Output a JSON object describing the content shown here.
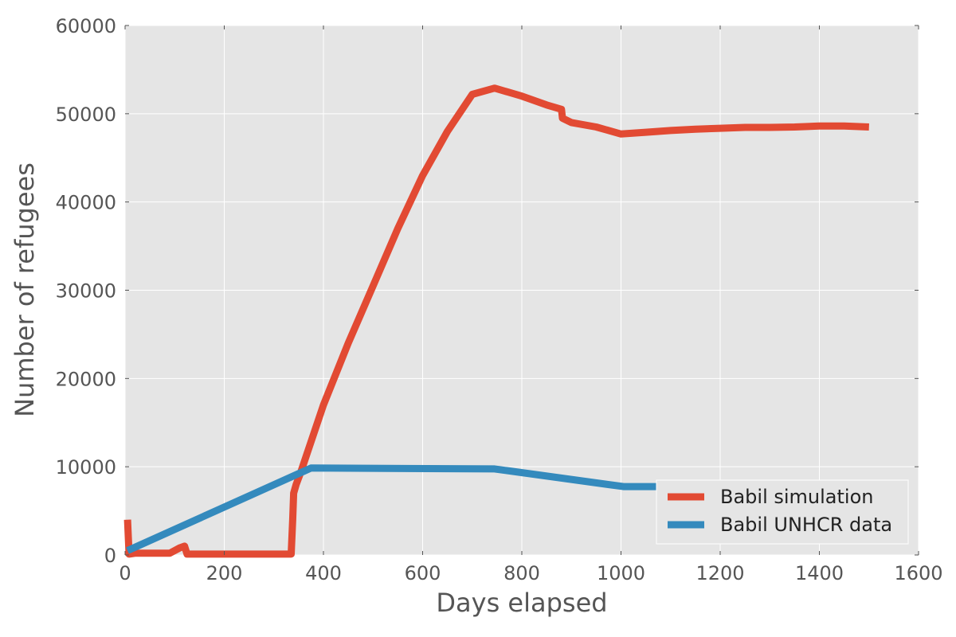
{
  "chart_data": {
    "type": "line",
    "title": "",
    "xlabel": "Days elapsed",
    "ylabel": "Number of refugees",
    "xlim": [
      0,
      1600
    ],
    "ylim": [
      0,
      60000
    ],
    "xticks": [
      0,
      200,
      400,
      600,
      800,
      1000,
      1200,
      1400,
      1600
    ],
    "yticks": [
      0,
      10000,
      20000,
      30000,
      40000,
      50000,
      60000
    ],
    "grid": true,
    "legend_position": "lower-right",
    "series": [
      {
        "name": "Babil simulation",
        "color": "#e24a33",
        "x": [
          5,
          8,
          20,
          90,
          110,
          120,
          125,
          200,
          335,
          338,
          340,
          345,
          355,
          370,
          400,
          450,
          500,
          550,
          600,
          650,
          700,
          745,
          800,
          850,
          880,
          882,
          900,
          950,
          1000,
          1050,
          1100,
          1150,
          1200,
          1250,
          1300,
          1350,
          1400,
          1450,
          1500
        ],
        "y": [
          4000,
          100,
          200,
          200,
          800,
          1000,
          100,
          100,
          100,
          4000,
          7000,
          8000,
          9500,
          12000,
          17000,
          24000,
          30500,
          37000,
          43000,
          48000,
          52200,
          52900,
          52000,
          51000,
          50500,
          49500,
          49000,
          48500,
          47700,
          47900,
          48100,
          48250,
          48350,
          48450,
          48450,
          48500,
          48600,
          48600,
          48500
        ]
      },
      {
        "name": "Babil UNHCR data",
        "color": "#348abd",
        "x": [
          5,
          375,
          745,
          1005,
          1075
        ],
        "y": [
          500,
          9850,
          9750,
          7750,
          7750
        ]
      }
    ]
  }
}
